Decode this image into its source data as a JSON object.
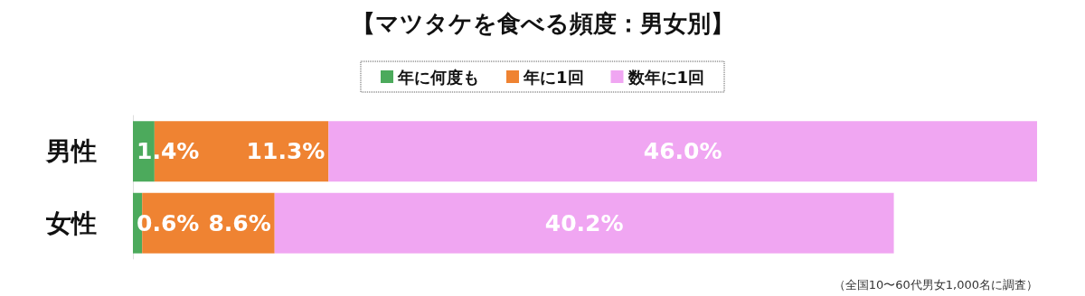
{
  "chart_data": {
    "type": "bar",
    "orientation": "horizontal",
    "stacked": true,
    "title": "【マツタケを食べる頻度：男女別】",
    "categories": [
      "男性",
      "女性"
    ],
    "legend": "top",
    "series": [
      {
        "name": "年に何度も",
        "color": "#4caa5c",
        "values": [
          1.4,
          0.6
        ],
        "value_labels": [
          "1.4%",
          "0.6%"
        ]
      },
      {
        "name": "年に1回",
        "color": "#ef8332",
        "values": [
          11.3,
          8.6
        ],
        "value_labels": [
          "11.3%",
          "8.6%"
        ]
      },
      {
        "name": "数年に1回",
        "color": "#f0a6f2",
        "values": [
          46.0,
          40.2
        ],
        "value_labels": [
          "46.0%",
          "40.2%"
        ]
      }
    ],
    "annotations": [
      "（全国10〜60代男女1,000名に調査）"
    ]
  }
}
